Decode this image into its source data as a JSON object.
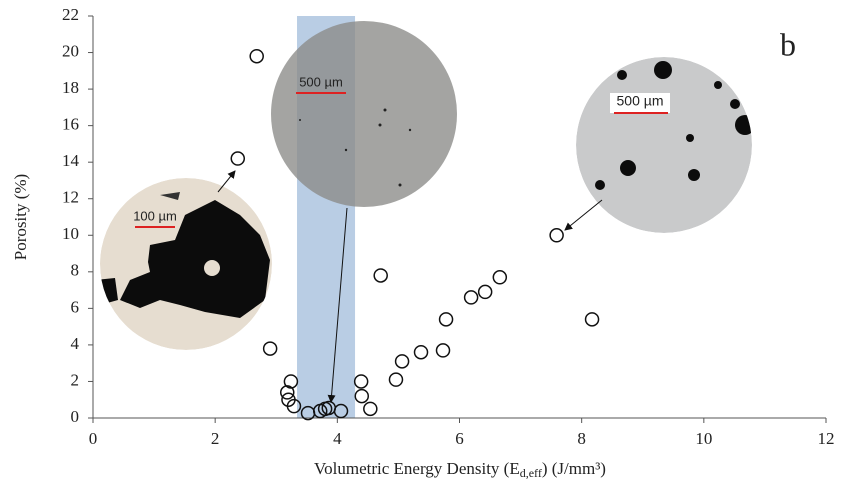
{
  "chart_data": {
    "type": "scatter",
    "panel_label": "b",
    "x_label": [
      "Volumetric Energy Density (E",
      "d,eff",
      ") (J/mm³)"
    ],
    "y_label": "Porosity (%)",
    "xlim": [
      0,
      12
    ],
    "xticks": [
      0,
      2,
      4,
      6,
      8,
      10,
      12
    ],
    "ylim": [
      0,
      22
    ],
    "yticks": [
      0,
      2,
      4,
      6,
      8,
      10,
      12,
      14,
      16,
      18,
      20,
      22
    ],
    "shaded_region": [
      3.34,
      4.29
    ],
    "shaded_color": "#b9cde4",
    "marker_color": "#111111",
    "x": [
      2.68,
      2.37,
      2.9,
      3.24,
      3.18,
      3.2,
      3.29,
      3.52,
      3.72,
      3.8,
      3.86,
      4.06,
      4.39,
      4.4,
      4.54,
      4.71,
      4.96,
      5.06,
      5.37,
      5.73,
      5.78,
      6.19,
      6.42,
      6.66,
      7.59,
      8.17
    ],
    "values": [
      19.8,
      14.2,
      3.8,
      2.0,
      1.4,
      1.0,
      0.65,
      0.27,
      0.38,
      0.5,
      0.55,
      0.38,
      2.0,
      1.2,
      0.5,
      7.8,
      2.1,
      3.1,
      3.6,
      3.7,
      5.4,
      6.6,
      6.9,
      7.7,
      10.0,
      5.4
    ],
    "scale_bars": [
      "100 µm",
      "500 µm",
      "500 µm"
    ]
  }
}
